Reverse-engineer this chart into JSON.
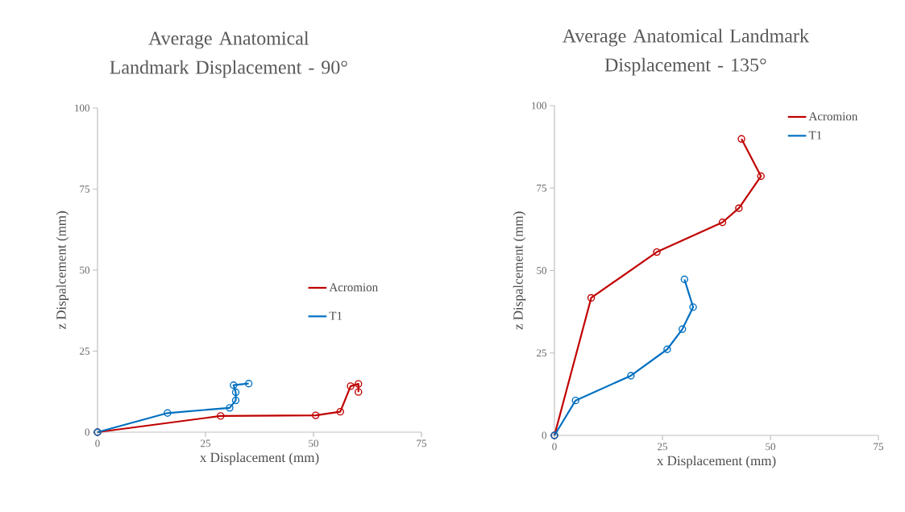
{
  "chart_data": [
    {
      "type": "line",
      "title": "Average Anatomical Landmark Displacement - 90°",
      "xlabel": "x Displacement (mm)",
      "ylabel": "z Dispalcement (mm)",
      "xlim": [
        0,
        75
      ],
      "ylim": [
        0,
        100
      ],
      "xticks": [
        0,
        25,
        50,
        75
      ],
      "yticks": [
        0,
        25,
        50,
        75,
        100
      ],
      "marker": "circle",
      "legend": "right",
      "series": [
        {
          "name": "Acromion",
          "color": "#c00000",
          "x": [
            0,
            28.5,
            50.5,
            56.2,
            58.6,
            60.4,
            60.4
          ],
          "values": [
            0,
            5.0,
            5.2,
            6.3,
            14.2,
            14.9,
            12.4
          ]
        },
        {
          "name": "T1",
          "color": "#0070c0",
          "x": [
            0,
            16.2,
            30.6,
            32.0,
            32.0,
            31.5,
            35.0
          ],
          "values": [
            0,
            5.9,
            7.5,
            9.8,
            12.3,
            14.5,
            15.0
          ]
        }
      ]
    },
    {
      "type": "line",
      "title": "Average Anatomical Landmark Displacement - 135°",
      "xlabel": "x Displacement (mm)",
      "ylabel": "z Dispalcement (mm)",
      "xlim": [
        0,
        75
      ],
      "ylim": [
        0,
        100
      ],
      "xticks": [
        0,
        25,
        50,
        75
      ],
      "yticks": [
        0,
        25,
        50,
        75,
        100
      ],
      "marker": "circle",
      "legend": "top right",
      "series": [
        {
          "name": "Acromion",
          "color": "#c00000",
          "x": [
            0,
            8.5,
            23.7,
            38.9,
            42.7,
            47.8,
            43.3
          ],
          "values": [
            0,
            41.7,
            55.6,
            64.6,
            68.9,
            78.6,
            89.9
          ]
        },
        {
          "name": "T1",
          "color": "#0070c0",
          "x": [
            0,
            4.9,
            17.7,
            26.1,
            29.6,
            32.1,
            30.1
          ],
          "values": [
            0,
            10.6,
            18.1,
            26.1,
            32.2,
            38.9,
            47.3
          ]
        }
      ]
    }
  ]
}
